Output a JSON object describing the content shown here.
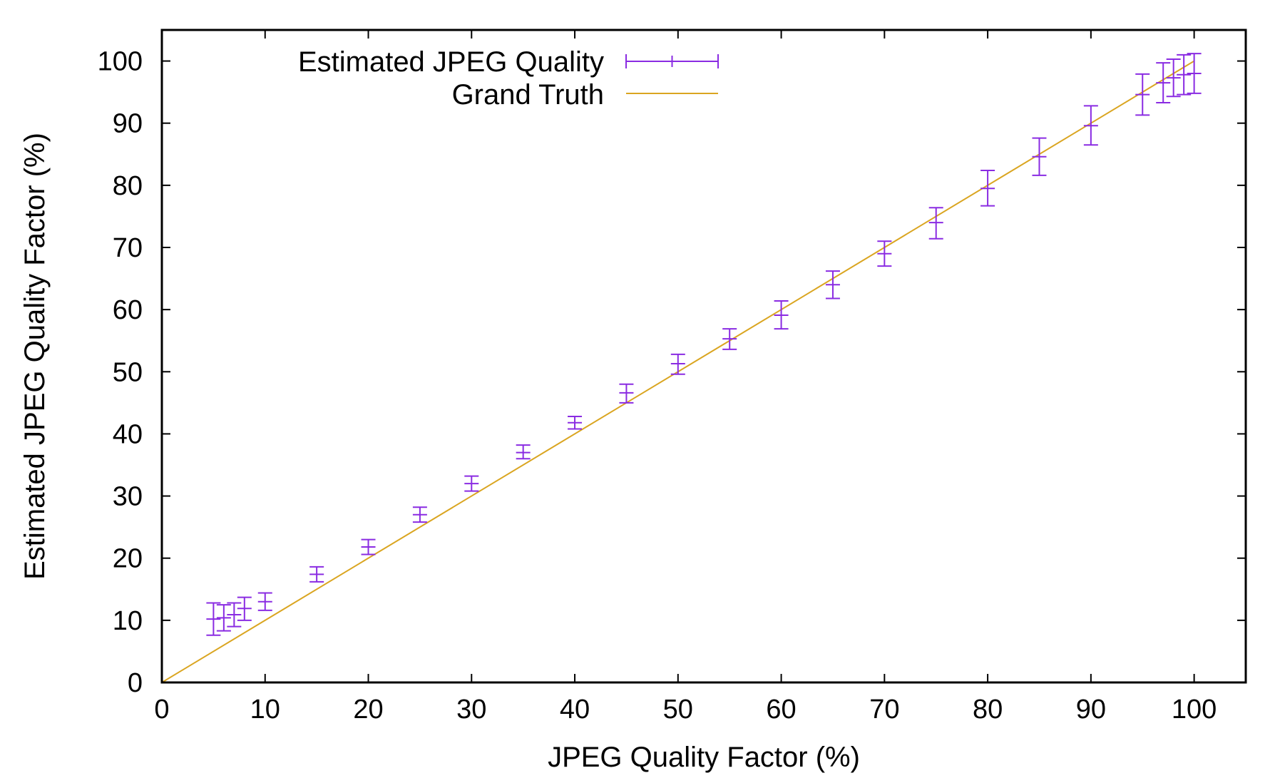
{
  "chart_data": {
    "type": "scatter",
    "title": "",
    "xlabel": "JPEG Quality Factor (%)",
    "ylabel": "Estimated JPEG Quality Factor (%)",
    "xlim": [
      0,
      105
    ],
    "ylim": [
      0,
      105
    ],
    "xticks": [
      0,
      10,
      20,
      30,
      40,
      50,
      60,
      70,
      80,
      90,
      100
    ],
    "yticks": [
      0,
      10,
      20,
      30,
      40,
      50,
      60,
      70,
      80,
      90,
      100
    ],
    "grid": false,
    "legend_position": "top-left",
    "series": [
      {
        "name": "Estimated JPEG Quality",
        "style": "yerrorbars",
        "color": "#8a2be2",
        "points": [
          {
            "x": 5,
            "y": 10.2,
            "ylow": 7.6,
            "yhigh": 12.8
          },
          {
            "x": 6,
            "y": 10.4,
            "ylow": 8.3,
            "yhigh": 12.5
          },
          {
            "x": 7,
            "y": 10.9,
            "ylow": 9.0,
            "yhigh": 12.8
          },
          {
            "x": 8,
            "y": 11.9,
            "ylow": 10.0,
            "yhigh": 13.7
          },
          {
            "x": 10,
            "y": 13.0,
            "ylow": 11.6,
            "yhigh": 14.4
          },
          {
            "x": 15,
            "y": 17.4,
            "ylow": 16.2,
            "yhigh": 18.6
          },
          {
            "x": 20,
            "y": 21.8,
            "ylow": 20.6,
            "yhigh": 23.0
          },
          {
            "x": 25,
            "y": 27.0,
            "ylow": 25.8,
            "yhigh": 28.2
          },
          {
            "x": 30,
            "y": 32.0,
            "ylow": 30.8,
            "yhigh": 33.2
          },
          {
            "x": 35,
            "y": 37.0,
            "ylow": 36.0,
            "yhigh": 38.2
          },
          {
            "x": 40,
            "y": 41.8,
            "ylow": 40.8,
            "yhigh": 42.8
          },
          {
            "x": 45,
            "y": 46.6,
            "ylow": 45.0,
            "yhigh": 48.0
          },
          {
            "x": 50,
            "y": 51.3,
            "ylow": 49.6,
            "yhigh": 52.8
          },
          {
            "x": 55,
            "y": 55.3,
            "ylow": 53.6,
            "yhigh": 56.9
          },
          {
            "x": 60,
            "y": 59.1,
            "ylow": 56.9,
            "yhigh": 61.4
          },
          {
            "x": 65,
            "y": 64.0,
            "ylow": 61.8,
            "yhigh": 66.2
          },
          {
            "x": 70,
            "y": 69.0,
            "ylow": 67.0,
            "yhigh": 71.0
          },
          {
            "x": 75,
            "y": 74.0,
            "ylow": 71.4,
            "yhigh": 76.4
          },
          {
            "x": 80,
            "y": 79.5,
            "ylow": 76.7,
            "yhigh": 82.4
          },
          {
            "x": 85,
            "y": 84.6,
            "ylow": 81.6,
            "yhigh": 87.6
          },
          {
            "x": 90,
            "y": 89.6,
            "ylow": 86.5,
            "yhigh": 92.8
          },
          {
            "x": 95,
            "y": 94.6,
            "ylow": 91.3,
            "yhigh": 97.9
          },
          {
            "x": 97,
            "y": 96.5,
            "ylow": 93.3,
            "yhigh": 99.7
          },
          {
            "x": 98,
            "y": 97.3,
            "ylow": 94.3,
            "yhigh": 100.3
          },
          {
            "x": 99,
            "y": 97.8,
            "ylow": 94.6,
            "yhigh": 101.0
          },
          {
            "x": 100,
            "y": 98.0,
            "ylow": 94.8,
            "yhigh": 101.2
          }
        ]
      },
      {
        "name": "Grand Truth",
        "style": "line",
        "color": "#daa520",
        "points": [
          {
            "x": 0,
            "y": 0
          },
          {
            "x": 100,
            "y": 100
          }
        ]
      }
    ]
  }
}
